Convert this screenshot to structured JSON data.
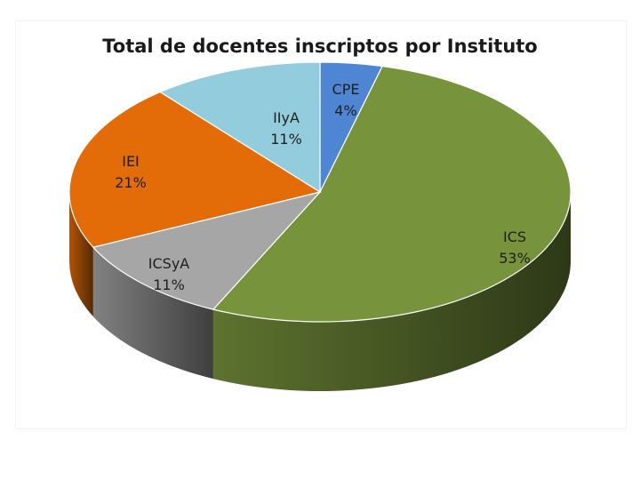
{
  "chart_data": {
    "type": "pie",
    "title": "Total de docentes inscriptos por Instituto",
    "slices": [
      {
        "label": "CPE",
        "value": 4,
        "value_label": "4%",
        "color": "#4f86d4"
      },
      {
        "label": "ICS",
        "value": 53,
        "value_label": "53%",
        "color": "#77933c"
      },
      {
        "label": "ICSyA",
        "value": 11,
        "value_label": "11%",
        "color": "#a6a6a6"
      },
      {
        "label": "IEI",
        "value": 21,
        "value_label": "21%",
        "color": "#e36c09"
      },
      {
        "label": "IIyA",
        "value": 11,
        "value_label": "11%",
        "color": "#93cddd"
      }
    ],
    "style": "3d-pie",
    "legend": "none",
    "data_labels": "category-and-percent"
  }
}
